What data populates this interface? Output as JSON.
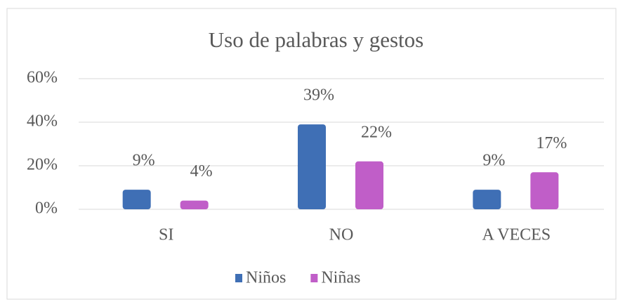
{
  "chart_data": {
    "type": "bar",
    "title": "Uso de palabras y gestos",
    "categories": [
      "SI",
      "NO",
      "A VECES"
    ],
    "series": [
      {
        "name": "Niños",
        "color": "#3f6fb5",
        "values": [
          9,
          39,
          9
        ],
        "value_labels": [
          "9%",
          "39%",
          "9%"
        ]
      },
      {
        "name": "Niñas",
        "color": "#c05ec8",
        "values": [
          4,
          22,
          17
        ],
        "value_labels": [
          "4%",
          "22%",
          "17%"
        ]
      }
    ],
    "ylim": [
      0,
      60
    ],
    "yticks": [
      {
        "value": 0,
        "label": "0%"
      },
      {
        "value": 20,
        "label": "20%"
      },
      {
        "value": 40,
        "label": "40%"
      },
      {
        "value": 60,
        "label": "60%"
      }
    ],
    "grid": true,
    "legend": "bottom"
  }
}
